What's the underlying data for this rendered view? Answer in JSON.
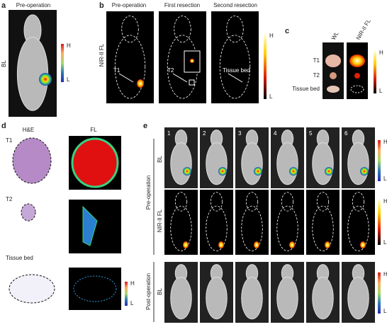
{
  "panels": {
    "a": {
      "label": "a",
      "title": "Pre-operation",
      "row_label": "BL",
      "scale": {
        "high": "H",
        "low": "L"
      }
    },
    "b": {
      "label": "b",
      "columns": [
        "Pre-operation",
        "First resection",
        "Second resection"
      ],
      "row_label": "NIR-II FL",
      "annotations": [
        "T1",
        "T2",
        "Tissue bed"
      ],
      "scale": {
        "high": "H",
        "low": "L"
      }
    },
    "c": {
      "label": "c",
      "columns": [
        "WL",
        "NIR-II FL"
      ],
      "rows": [
        "T1",
        "T2",
        "Tissue bed"
      ],
      "scale": {
        "high": "H",
        "low": "L"
      }
    },
    "d": {
      "label": "d",
      "columns": [
        "H&E",
        "FL"
      ],
      "rows": [
        "T1",
        "T2",
        "Tissue bed"
      ],
      "scale": {
        "high": "H",
        "low": "L"
      }
    },
    "e": {
      "label": "e",
      "columns": [
        "1",
        "2",
        "3",
        "4",
        "5",
        "6"
      ],
      "groups": [
        {
          "label": "Pre-operation",
          "rows": [
            "BL",
            "NIR-II FL"
          ]
        },
        {
          "label": "Post-operation",
          "rows": [
            "BL"
          ]
        }
      ],
      "scales": [
        {
          "high": "H",
          "low": "L"
        },
        {
          "high": "H",
          "low": "L"
        },
        {
          "high": "H",
          "low": "L"
        }
      ]
    }
  }
}
